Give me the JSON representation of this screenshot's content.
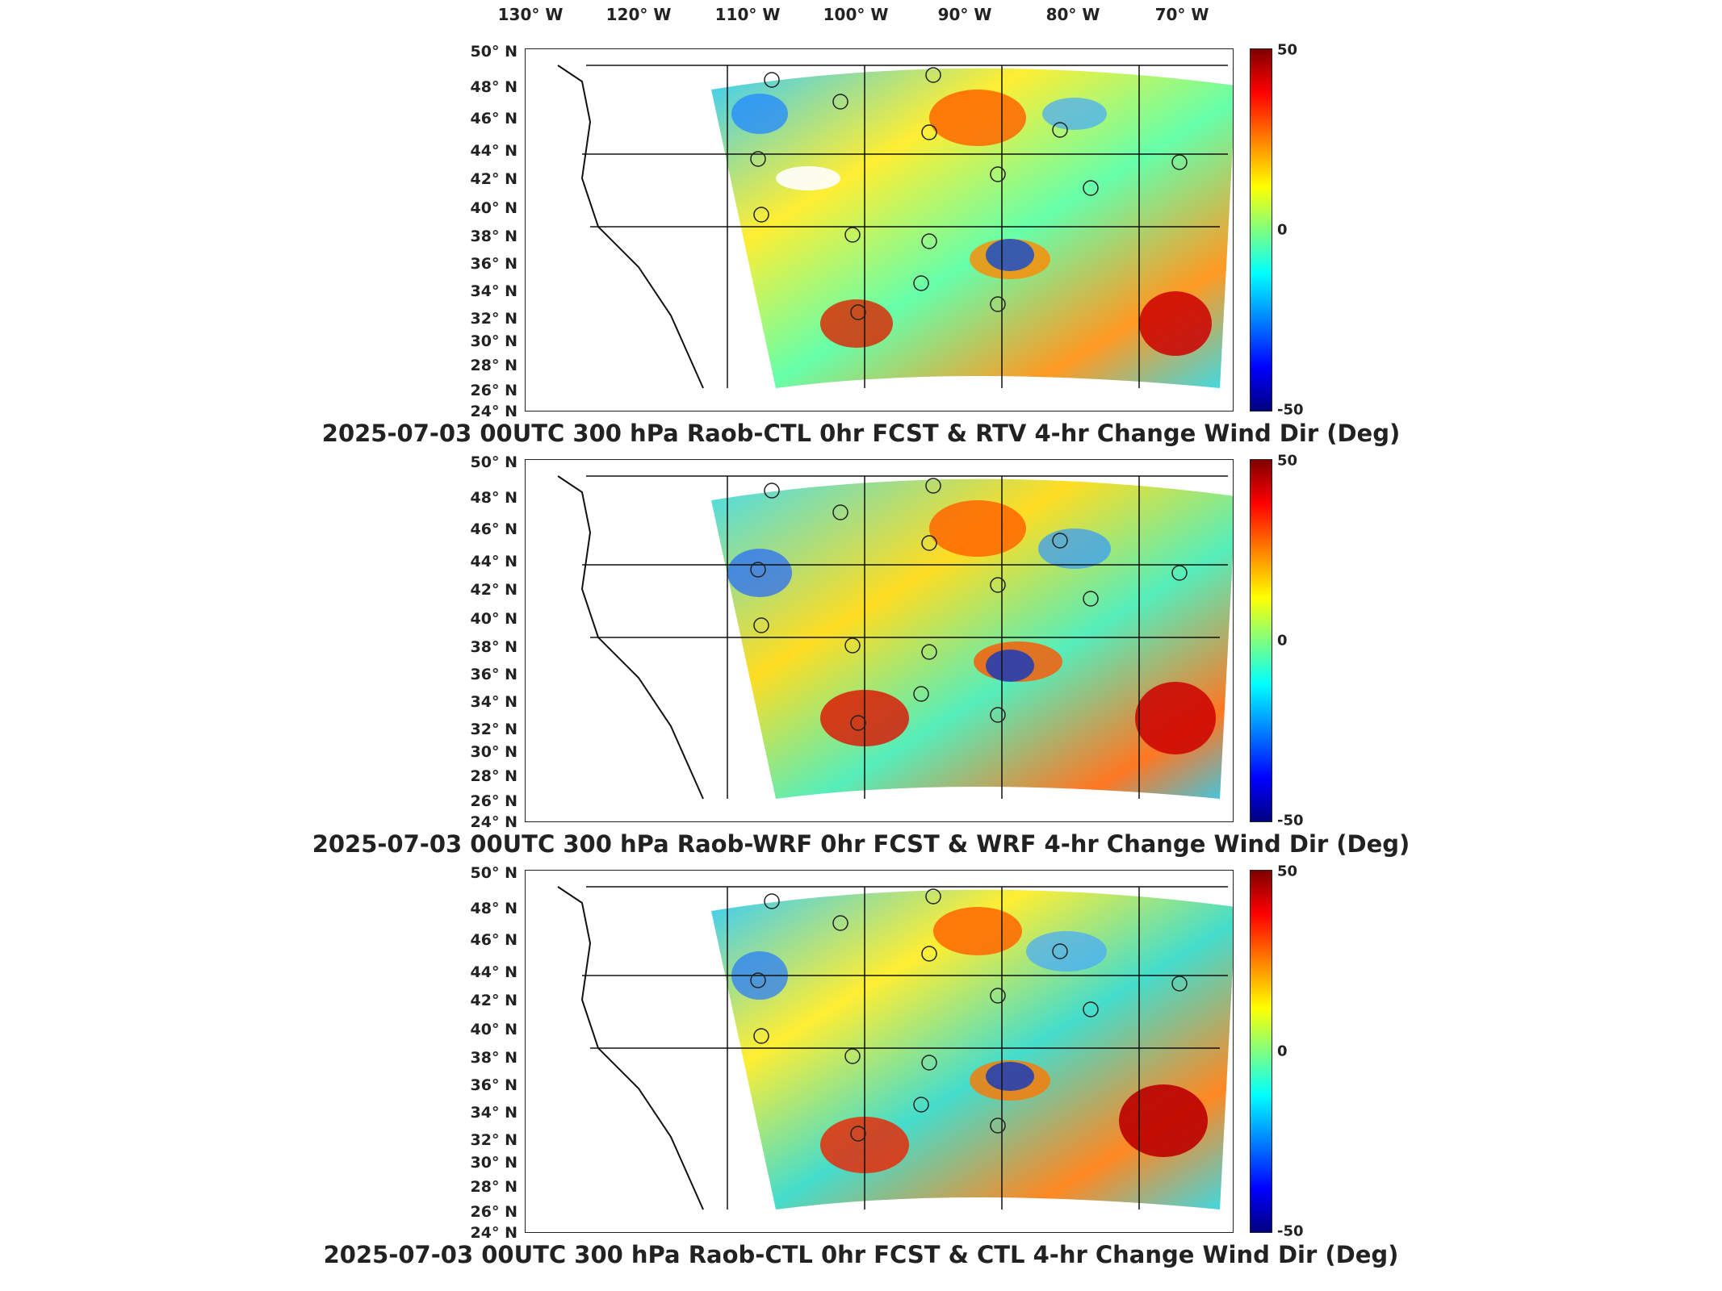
{
  "lon_labels": [
    "130° W",
    "120° W",
    "110° W",
    "100° W",
    "90° W",
    "80° W",
    "70° W"
  ],
  "lat_labels": [
    "50° N",
    "48° N",
    "46° N",
    "44° N",
    "42° N",
    "40° N",
    "38° N",
    "36° N",
    "34° N",
    "32° N",
    "30° N",
    "28° N",
    "26° N",
    "24° N"
  ],
  "colorbar": {
    "max": "50",
    "mid": "0",
    "min": "-50"
  },
  "panels": [
    {
      "title": "2025-07-03 00UTC 300 hPa Raob-CTL 0hr FCST & RTV 4-hr Change Wind Dir (Deg)"
    },
    {
      "title": "2025-07-03 00UTC 300 hPa Raob-WRF 0hr FCST & WRF 4-hr Change Wind Dir (Deg)"
    },
    {
      "title": "2025-07-03 00UTC 300 hPa Raob-CTL 0hr FCST & CTL 4-hr Change Wind Dir (Deg)"
    }
  ]
}
